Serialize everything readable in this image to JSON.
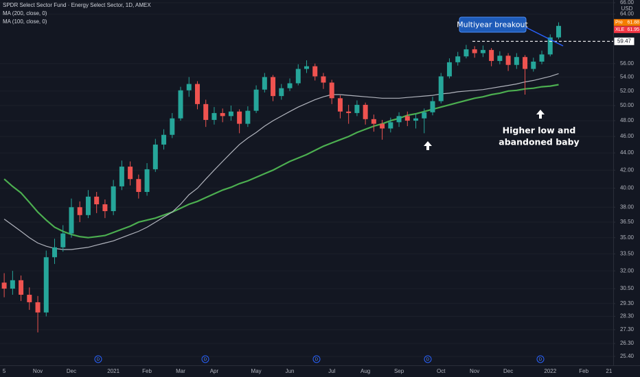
{
  "chart_data": {
    "type": "candlestick",
    "title": "SPDR Select Sector Fund · Energy Select Sector, 1D, AMEX",
    "currency": "USD",
    "log_scale": true,
    "grid": true,
    "up_color": "#26a69a",
    "down_color": "#ef5350",
    "categories": [
      "5",
      null,
      null,
      null,
      "Nov",
      null,
      null,
      null,
      "Dec",
      null,
      null,
      null,
      null,
      "2021",
      null,
      null,
      null,
      "Feb",
      null,
      null,
      null,
      "Mar",
      null,
      null,
      null,
      "Apr",
      null,
      null,
      null,
      null,
      "May",
      null,
      null,
      null,
      "Jun",
      null,
      null,
      null,
      null,
      "Jul",
      null,
      null,
      null,
      "Aug",
      null,
      null,
      null,
      "Sep",
      null,
      null,
      null,
      null,
      "Oct",
      null,
      null,
      null,
      "Nov",
      null,
      null,
      null,
      "Dec",
      null,
      null,
      null,
      null,
      "2022",
      null,
      null,
      null,
      "Feb",
      null,
      null,
      "21"
    ],
    "open": [
      31.0,
      30.5,
      31.2,
      30.0,
      29.4,
      28.6,
      33.2,
      34.1,
      35.4,
      38.0,
      37.2,
      39.1,
      38.3,
      37.6,
      40.2,
      42.4,
      41.0,
      39.6,
      42.1,
      45.0,
      46.2,
      48.3,
      52.1,
      53.0,
      50.2,
      48.1,
      49.0,
      48.6,
      49.2,
      47.6,
      49.3,
      52.2,
      54.0,
      51.3,
      52.4,
      53.1,
      55.2,
      55.6,
      54.1,
      53.2,
      51.0,
      49.2,
      49.0,
      50.1,
      48.2,
      47.6,
      47.0,
      47.8,
      48.6,
      48.0,
      48.3,
      49.1,
      50.6,
      54.1,
      56.2,
      57.1,
      58.2,
      57.6,
      58.1,
      56.4,
      57.2,
      55.8,
      57.0,
      55.2,
      56.3,
      57.4,
      60.1,
      null,
      null,
      null,
      null,
      null,
      null
    ],
    "high": [
      31.8,
      32.0,
      31.6,
      30.6,
      29.9,
      33.8,
      34.9,
      36.2,
      38.9,
      38.6,
      39.8,
      39.6,
      38.8,
      40.9,
      43.1,
      43.0,
      41.5,
      42.8,
      45.7,
      46.9,
      49.0,
      52.6,
      54.0,
      53.4,
      50.8,
      49.8,
      49.6,
      50.0,
      49.5,
      49.9,
      52.8,
      54.6,
      54.3,
      53.0,
      53.8,
      55.9,
      56.5,
      56.0,
      54.6,
      53.6,
      51.4,
      50.1,
      50.7,
      50.4,
      48.8,
      48.1,
      48.4,
      49.1,
      49.2,
      48.9,
      49.6,
      51.2,
      54.6,
      56.8,
      57.8,
      58.9,
      58.7,
      58.8,
      58.4,
      57.9,
      57.6,
      57.6,
      57.3,
      56.9,
      58.0,
      60.6,
      62.6,
      null,
      null,
      null,
      null,
      null,
      null
    ],
    "low": [
      29.8,
      30.0,
      29.5,
      28.8,
      27.1,
      28.3,
      32.6,
      33.7,
      35.0,
      36.5,
      36.9,
      37.4,
      36.9,
      37.2,
      39.8,
      40.3,
      38.9,
      39.2,
      41.8,
      44.4,
      45.8,
      48.0,
      51.2,
      49.5,
      47.2,
      47.5,
      47.8,
      48.0,
      46.4,
      47.2,
      49.0,
      51.8,
      50.6,
      50.8,
      52.0,
      52.8,
      54.6,
      53.5,
      52.3,
      50.2,
      48.3,
      47.6,
      48.6,
      47.5,
      46.6,
      45.6,
      46.5,
      47.2,
      47.3,
      47.0,
      46.4,
      48.7,
      50.3,
      53.8,
      55.7,
      56.8,
      56.9,
      57.0,
      55.6,
      55.9,
      54.9,
      55.2,
      51.5,
      54.8,
      55.9,
      57.1,
      59.8,
      null,
      null,
      null,
      null,
      null,
      null
    ],
    "close": [
      30.5,
      31.2,
      30.0,
      29.4,
      28.6,
      33.2,
      34.1,
      35.4,
      38.0,
      37.2,
      39.1,
      38.3,
      37.6,
      40.2,
      42.4,
      41.0,
      39.6,
      42.1,
      45.0,
      46.2,
      48.3,
      52.1,
      53.0,
      50.2,
      48.1,
      49.0,
      48.6,
      49.2,
      47.6,
      49.3,
      52.2,
      54.0,
      51.3,
      52.4,
      53.1,
      55.2,
      55.6,
      54.1,
      53.2,
      51.0,
      49.2,
      49.0,
      50.1,
      48.2,
      47.6,
      47.0,
      47.8,
      48.6,
      48.0,
      48.3,
      49.1,
      50.6,
      54.1,
      56.2,
      57.1,
      58.2,
      57.6,
      58.1,
      56.4,
      57.2,
      55.8,
      57.0,
      55.2,
      56.3,
      57.4,
      60.1,
      62.0,
      null,
      null,
      null,
      null,
      null,
      null
    ],
    "series": [
      {
        "name": "MA (200, close, 0)",
        "color": "#4caf50",
        "values": [
          41,
          40.2,
          39.5,
          38.5,
          37.5,
          36.7,
          36,
          35.6,
          35.3,
          35.1,
          35,
          35.1,
          35.2,
          35.5,
          35.8,
          36.1,
          36.5,
          36.7,
          36.9,
          37.2,
          37.5,
          37.9,
          38.3,
          38.6,
          39,
          39.4,
          39.8,
          40.1,
          40.5,
          40.8,
          41.2,
          41.6,
          42,
          42.5,
          43,
          43.4,
          43.8,
          44.3,
          44.8,
          45.2,
          45.6,
          46,
          46.5,
          46.9,
          47.3,
          47.6,
          48,
          48.3,
          48.7,
          48.9,
          49.2,
          49.5,
          49.8,
          50.1,
          50.4,
          50.7,
          51,
          51.2,
          51.5,
          51.7,
          52,
          52.1,
          52.3,
          52.4,
          52.6,
          52.7,
          52.9,
          null,
          null,
          null,
          null,
          null,
          null
        ]
      },
      {
        "name": "MA (100, close, 0)",
        "color": "#b2b5be",
        "values": [
          36.8,
          36.2,
          35.6,
          35,
          34.5,
          34.2,
          34,
          33.9,
          33.9,
          34,
          34.1,
          34.3,
          34.5,
          34.7,
          35,
          35.3,
          35.6,
          36,
          36.5,
          37,
          37.5,
          38.3,
          39.3,
          40,
          41,
          42,
          43,
          44,
          45,
          45.8,
          46.5,
          47.3,
          48,
          48.6,
          49.2,
          49.8,
          50.3,
          50.8,
          51.2,
          51.5,
          51.5,
          51.4,
          51.3,
          51.2,
          51.1,
          51,
          51,
          51,
          51.1,
          51.2,
          51.3,
          51.4,
          51.6,
          51.7,
          51.9,
          52,
          52.1,
          52.2,
          52.4,
          52.6,
          52.8,
          53,
          53.3,
          53.5,
          53.8,
          54.1,
          54.5,
          null,
          null,
          null,
          null,
          null,
          null
        ]
      }
    ],
    "ylim": [
      24.84,
      66.49
    ],
    "yticks": [
      {
        "value": 25.4,
        "label": "25.40"
      },
      {
        "value": 26.3,
        "label": "26.30"
      },
      {
        "value": 27.3,
        "label": "27.30"
      },
      {
        "value": 28.3,
        "label": "28.30"
      },
      {
        "value": 29.3,
        "label": "29.30"
      },
      {
        "value": 30.5,
        "label": "30.50"
      },
      {
        "value": 32,
        "label": "32.00"
      },
      {
        "value": 33.5,
        "label": "33.50"
      },
      {
        "value": 35,
        "label": "35.00"
      },
      {
        "value": 36.5,
        "label": "36.50"
      },
      {
        "value": 38,
        "label": "38.00"
      },
      {
        "value": 40,
        "label": "40.00"
      },
      {
        "value": 42,
        "label": "42.00"
      },
      {
        "value": 44,
        "label": "44.00"
      },
      {
        "value": 46,
        "label": "46.00"
      },
      {
        "value": 48,
        "label": "48.00"
      },
      {
        "value": 50,
        "label": "50.00"
      },
      {
        "value": 52,
        "label": "52.00"
      },
      {
        "value": 54,
        "label": "54.00"
      },
      {
        "value": 56,
        "label": "56.00"
      },
      {
        "value": 64,
        "label": "64.00"
      },
      {
        "value": 66,
        "label": "66.00"
      }
    ],
    "level": 59.47,
    "price_tags": [
      {
        "name": "Pre",
        "value": 61.88,
        "color": "#f57c00"
      },
      {
        "name": "XLE",
        "value": 61.95,
        "color": "#f23645"
      }
    ],
    "dividend_marker": "D",
    "annotations": {
      "breakout": "Multiyear breakout",
      "higher_low": [
        "Higher low and",
        "abandoned baby"
      ]
    }
  }
}
